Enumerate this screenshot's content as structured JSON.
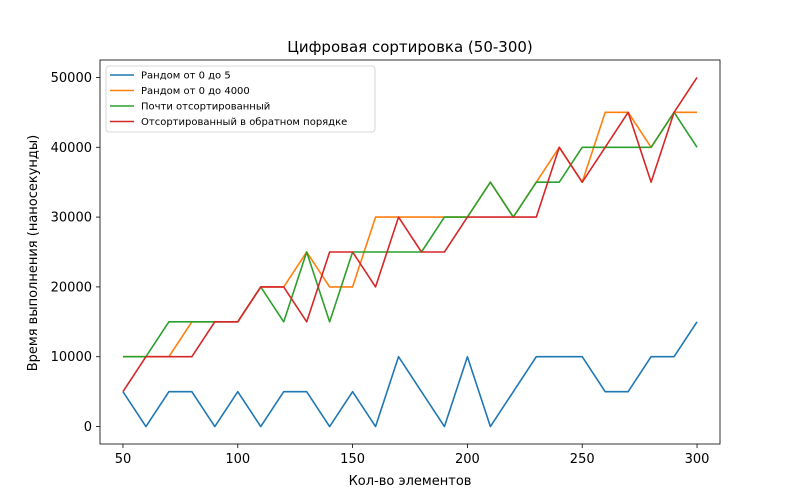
{
  "chart_data": {
    "type": "line",
    "title": "Цифровая сортировка (50-300)",
    "xlabel": "Кол-во элементов",
    "ylabel": "Время выполнения (наносекунды)",
    "x": [
      50,
      60,
      70,
      80,
      90,
      100,
      110,
      120,
      130,
      140,
      150,
      160,
      170,
      180,
      190,
      200,
      210,
      220,
      230,
      240,
      250,
      260,
      270,
      280,
      290,
      300
    ],
    "xlim": [
      40,
      310
    ],
    "ylim": [
      -2500,
      52500
    ],
    "xticks": [
      50,
      100,
      150,
      200,
      250,
      300
    ],
    "yticks": [
      0,
      10000,
      20000,
      30000,
      40000,
      50000
    ],
    "grid": false,
    "legend_position": "top-left",
    "series": [
      {
        "name": "Рандом от 0 до 5",
        "color": "#1f77b4",
        "values": [
          5000,
          0,
          5000,
          5000,
          0,
          5000,
          0,
          5000,
          5000,
          0,
          5000,
          0,
          10000,
          5000,
          0,
          10000,
          0,
          5000,
          10000,
          10000,
          10000,
          5000,
          5000,
          10000,
          10000,
          15000
        ]
      },
      {
        "name": "Рандом от 0 до 4000",
        "color": "#ff7f0e",
        "values": [
          10000,
          10000,
          10000,
          15000,
          15000,
          15000,
          20000,
          20000,
          25000,
          20000,
          20000,
          30000,
          30000,
          30000,
          30000,
          30000,
          35000,
          30000,
          35000,
          40000,
          35000,
          45000,
          45000,
          40000,
          45000,
          45000
        ]
      },
      {
        "name": "Почти отсортированный",
        "color": "#2ca02c",
        "values": [
          10000,
          10000,
          15000,
          15000,
          15000,
          15000,
          20000,
          15000,
          25000,
          15000,
          25000,
          25000,
          25000,
          25000,
          30000,
          30000,
          35000,
          30000,
          35000,
          35000,
          40000,
          40000,
          40000,
          40000,
          45000,
          40000
        ]
      },
      {
        "name": "Отсортированный в обратном порядке",
        "color": "#d62728",
        "values": [
          5000,
          10000,
          10000,
          10000,
          15000,
          15000,
          20000,
          20000,
          15000,
          25000,
          25000,
          20000,
          30000,
          25000,
          25000,
          30000,
          30000,
          30000,
          30000,
          40000,
          35000,
          40000,
          45000,
          35000,
          45000,
          50000
        ]
      }
    ]
  }
}
